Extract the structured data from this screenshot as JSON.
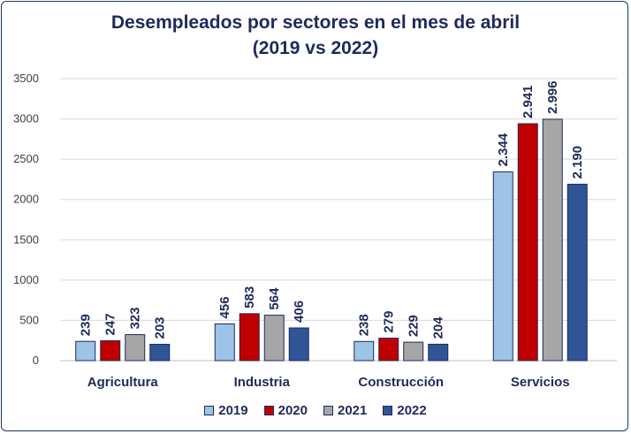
{
  "chart_data": {
    "type": "bar",
    "title": "Desempleados por sectores en el mes de abril",
    "subtitle": "(2019 vs 2022)",
    "xlabel": "",
    "ylabel": "",
    "ylim": [
      0,
      3500
    ],
    "yticks": [
      "0",
      "500",
      "1000",
      "1500",
      "2000",
      "2500",
      "3000",
      "3500"
    ],
    "ytick_values": [
      0,
      500,
      1000,
      1500,
      2000,
      2500,
      3000,
      3500
    ],
    "grid": true,
    "legend_position": "bottom",
    "categories": [
      "Agricultura",
      "Industria",
      "Construcción",
      "Servicios"
    ],
    "series": [
      {
        "name": "2019",
        "color": "#9dc3e6",
        "values": [
          239,
          456,
          238,
          2344
        ],
        "labels": [
          "239",
          "456",
          "238",
          "2.344"
        ]
      },
      {
        "name": "2020",
        "color": "#c00000",
        "values": [
          247,
          583,
          279,
          2941
        ],
        "labels": [
          "247",
          "583",
          "279",
          "2.941"
        ]
      },
      {
        "name": "2021",
        "color": "#a6a6a6",
        "values": [
          323,
          564,
          229,
          2996
        ],
        "labels": [
          "323",
          "564",
          "229",
          "2.996"
        ]
      },
      {
        "name": "2022",
        "color": "#2f5597",
        "values": [
          203,
          406,
          204,
          2190
        ],
        "labels": [
          "203",
          "406",
          "204",
          "2.190"
        ]
      }
    ]
  }
}
